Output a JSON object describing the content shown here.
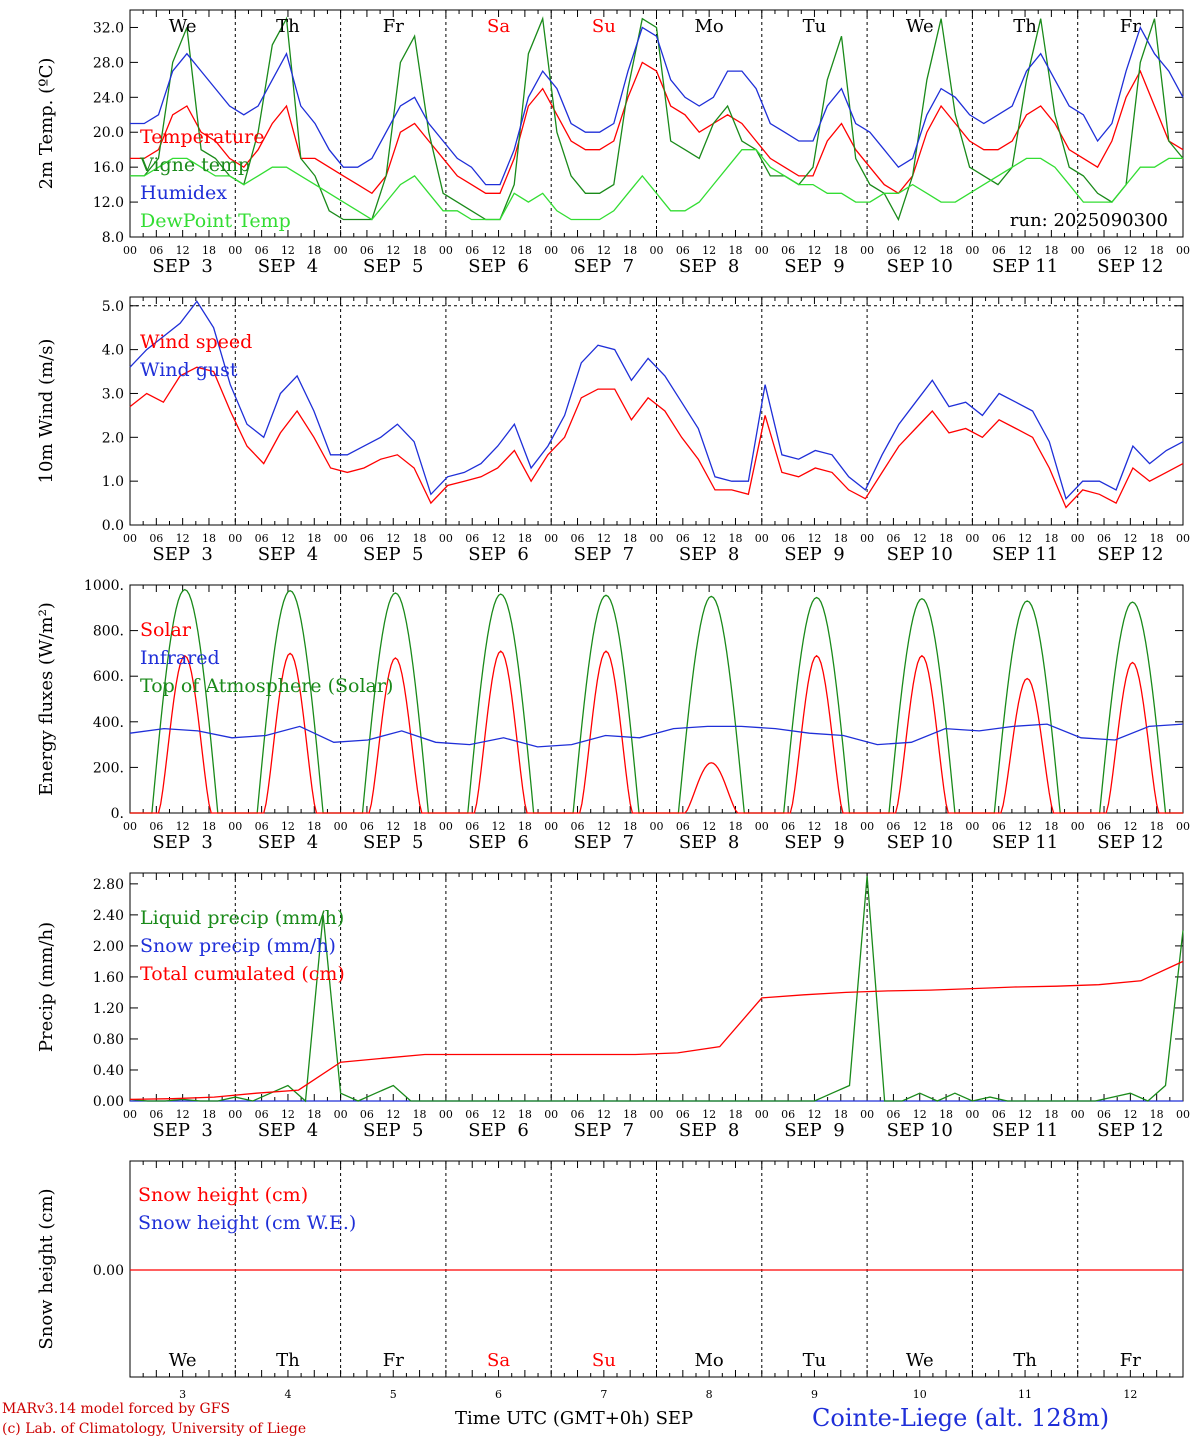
{
  "colors": {
    "temperature": "#ff0000",
    "vigne": "#1a8a1a",
    "humidex": "#1f2fd8",
    "dewpoint": "#33dd33",
    "red": "#ff0000",
    "blue": "#1f2fd8",
    "green": "#1a8a1a",
    "weekend": "#ff0000",
    "weekday": "#000000"
  },
  "days": [
    "We",
    "Th",
    "Fr",
    "Sa",
    "Su",
    "Mo",
    "Tu",
    "We",
    "Th",
    "Fr"
  ],
  "day_is_weekend": [
    false,
    false,
    false,
    true,
    true,
    false,
    false,
    false,
    false,
    false
  ],
  "date_labels": [
    "SEP  3",
    "SEP  4",
    "SEP  5",
    "SEP  6",
    "SEP  7",
    "SEP  8",
    "SEP  9",
    "SEP 10",
    "SEP 11",
    "SEP 12"
  ],
  "hour_ticks": [
    "00",
    "06",
    "12",
    "18"
  ],
  "last_hour_tick": "00",
  "day_numbers": [
    "3",
    "4",
    "5",
    "6",
    "7",
    "8",
    "9",
    "10",
    "11",
    "12"
  ],
  "run_label": "run: 2025090300",
  "footer": {
    "model": "MARv3.14 model forced by GFS",
    "lab": "(c) Lab. of Climatology, University of Liege",
    "xlabel": "Time UTC (GMT+0h) SEP",
    "station": "Cointe-Liege (alt. 128m)"
  },
  "chart_data": [
    {
      "type": "line",
      "ylabel": "2m Temp. (ºC)",
      "ylim": [
        8,
        34
      ],
      "yticks": [
        "8.0",
        "12.0",
        "16.0",
        "20.0",
        "24.0",
        "28.0",
        "32.0"
      ],
      "grid": false,
      "legend_position": "top-left",
      "x": "hours since SEP 3 00 UTC, 3-hourly, 0-240",
      "series": [
        {
          "name": "Temperature",
          "color_key": "temperature",
          "values": [
            17,
            17,
            18,
            22,
            23,
            20,
            19,
            17,
            16,
            18,
            21,
            23,
            17,
            17,
            16,
            15,
            14,
            13,
            15,
            20,
            21,
            19,
            17,
            15,
            14,
            13,
            13,
            17,
            23,
            25,
            22,
            19,
            18,
            18,
            19,
            24,
            28,
            27,
            23,
            22,
            20,
            21,
            22,
            21,
            19,
            17,
            16,
            15,
            15,
            19,
            21,
            18,
            16,
            14,
            13,
            15,
            20,
            23,
            21,
            19,
            18,
            18,
            19,
            22,
            23,
            21,
            18,
            17,
            16,
            19,
            24,
            27,
            23,
            19,
            18
          ]
        },
        {
          "name": "Vigne temp",
          "color_key": "vigne",
          "values": [
            15,
            15,
            17,
            28,
            32,
            18,
            17,
            15,
            14,
            20,
            30,
            33,
            17,
            15,
            11,
            10,
            10,
            10,
            15,
            28,
            31,
            20,
            13,
            12,
            11,
            10,
            10,
            14,
            29,
            33,
            20,
            15,
            13,
            13,
            14,
            25,
            33,
            32,
            19,
            18,
            17,
            21,
            23,
            19,
            18,
            15,
            15,
            14,
            16,
            26,
            31,
            17,
            14,
            13,
            10,
            15,
            26,
            33,
            22,
            16,
            15,
            14,
            16,
            26,
            33,
            22,
            16,
            15,
            13,
            12,
            14,
            28,
            33,
            19,
            17
          ]
        },
        {
          "name": "Humidex",
          "color_key": "humidex",
          "values": [
            21,
            21,
            22,
            27,
            29,
            27,
            25,
            23,
            22,
            23,
            26,
            29,
            23,
            21,
            18,
            16,
            16,
            17,
            20,
            23,
            24,
            21,
            19,
            17,
            16,
            14,
            14,
            18,
            24,
            27,
            25,
            21,
            20,
            20,
            21,
            27,
            32,
            31,
            26,
            24,
            23,
            24,
            27,
            27,
            25,
            21,
            20,
            19,
            19,
            23,
            25,
            21,
            20,
            18,
            16,
            17,
            22,
            25,
            24,
            22,
            21,
            22,
            23,
            27,
            29,
            26,
            23,
            22,
            19,
            21,
            27,
            32,
            29,
            27,
            24
          ]
        },
        {
          "name": "DewPoint Temp",
          "color_key": "dewpoint",
          "values": [
            15,
            15,
            16,
            17,
            17,
            16,
            15,
            15,
            14,
            15,
            16,
            16,
            15,
            14,
            13,
            12,
            11,
            10,
            12,
            14,
            15,
            13,
            11,
            11,
            10,
            10,
            10,
            13,
            12,
            13,
            11,
            10,
            10,
            10,
            11,
            13,
            15,
            13,
            11,
            11,
            12,
            14,
            16,
            18,
            18,
            16,
            15,
            14,
            14,
            13,
            13,
            12,
            12,
            13,
            13,
            14,
            13,
            12,
            12,
            13,
            14,
            15,
            16,
            17,
            17,
            16,
            14,
            12,
            12,
            12,
            14,
            16,
            16,
            17,
            17
          ]
        }
      ]
    },
    {
      "type": "line",
      "ylabel": "10m Wind (m/s)",
      "ylim": [
        0,
        5.2
      ],
      "yticks": [
        "0.0",
        "1.0",
        "2.0",
        "3.0",
        "4.0",
        "5.0"
      ],
      "reference_line": 5.0,
      "legend_position": "top-left",
      "series": [
        {
          "name": "Wind speed",
          "color_key": "red",
          "values": [
            2.7,
            3.0,
            2.8,
            3.4,
            3.6,
            3.5,
            2.6,
            1.8,
            1.4,
            2.1,
            2.6,
            2.0,
            1.3,
            1.2,
            1.3,
            1.5,
            1.6,
            1.3,
            0.5,
            0.9,
            1.0,
            1.1,
            1.3,
            1.7,
            1.0,
            1.6,
            2.0,
            2.9,
            3.1,
            3.1,
            2.4,
            2.9,
            2.6,
            2.0,
            1.5,
            0.8,
            0.8,
            0.7,
            2.5,
            1.2,
            1.1,
            1.3,
            1.2,
            0.8,
            0.6,
            1.2,
            1.8,
            2.2,
            2.6,
            2.1,
            2.2,
            2.0,
            2.4,
            2.2,
            2.0,
            1.3,
            0.4,
            0.8,
            0.7,
            0.5,
            1.3,
            1.0,
            1.2,
            1.4
          ]
        },
        {
          "name": "Wind gust",
          "color_key": "blue",
          "values": [
            3.6,
            4.0,
            4.3,
            4.6,
            5.1,
            4.5,
            3.2,
            2.3,
            2.0,
            3.0,
            3.4,
            2.6,
            1.6,
            1.6,
            1.8,
            2.0,
            2.3,
            1.9,
            0.7,
            1.1,
            1.2,
            1.4,
            1.8,
            2.3,
            1.3,
            1.8,
            2.5,
            3.7,
            4.1,
            4.0,
            3.3,
            3.8,
            3.4,
            2.8,
            2.2,
            1.1,
            1.0,
            1.0,
            3.2,
            1.6,
            1.5,
            1.7,
            1.6,
            1.1,
            0.8,
            1.6,
            2.3,
            2.8,
            3.3,
            2.7,
            2.8,
            2.5,
            3.0,
            2.8,
            2.6,
            1.9,
            0.6,
            1.0,
            1.0,
            0.8,
            1.8,
            1.4,
            1.7,
            1.9
          ]
        }
      ]
    },
    {
      "type": "line",
      "ylabel": "Energy fluxes (W/m²)",
      "ylim": [
        0,
        1000
      ],
      "yticks": [
        "0.",
        "200.",
        "400.",
        "600.",
        "800.",
        "1000."
      ],
      "legend_position": "top-left",
      "series": [
        {
          "name": "Solar",
          "color_key": "red",
          "daily_peak": [
            690,
            700,
            680,
            710,
            710,
            220,
            690,
            690,
            590,
            660
          ]
        },
        {
          "name": "Infrared",
          "color_key": "blue",
          "values": [
            350,
            370,
            360,
            330,
            340,
            380,
            310,
            320,
            360,
            310,
            300,
            330,
            290,
            300,
            340,
            330,
            370,
            380,
            380,
            370,
            350,
            340,
            300,
            310,
            370,
            360,
            380,
            390,
            330,
            320,
            380,
            390
          ]
        },
        {
          "name": "Top of Atmosphere (Solar)",
          "color_key": "green",
          "daily_peak": [
            980,
            975,
            965,
            960,
            955,
            950,
            945,
            940,
            930,
            925
          ]
        }
      ]
    },
    {
      "type": "line",
      "ylabel": "Precip (mm/h)",
      "ylim": [
        0,
        2.94
      ],
      "yticks": [
        "0.00",
        "0.40",
        "0.80",
        "1.20",
        "1.60",
        "2.00",
        "2.40",
        "2.80"
      ],
      "legend_position": "top-left",
      "series": [
        {
          "name": "Liquid precip (mm/h)",
          "color_key": "green",
          "values": [
            0.02,
            0,
            0,
            0.02,
            0,
            0,
            0.05,
            0,
            0.1,
            0.2,
            0,
            2.4,
            0.1,
            0,
            0.1,
            0.2,
            0,
            0,
            0,
            0,
            0,
            0,
            0,
            0,
            0,
            0,
            0,
            0,
            0,
            0,
            0,
            0,
            0,
            0,
            0,
            0,
            0,
            0,
            0,
            0,
            0.1,
            0.2,
            2.9,
            0,
            0,
            0.1,
            0,
            0.1,
            0,
            0.05,
            0,
            0,
            0,
            0,
            0,
            0,
            0.05,
            0.1,
            0,
            0.2,
            2.2
          ]
        },
        {
          "name": "Snow precip (mm/h)",
          "color_key": "blue",
          "values": [
            0,
            0
          ]
        },
        {
          "name": "Total cumulated (cm)",
          "color_key": "red",
          "values": [
            0.02,
            0.03,
            0.05,
            0.1,
            0.14,
            0.5,
            0.55,
            0.6,
            0.6,
            0.6,
            0.6,
            0.6,
            0.6,
            0.62,
            0.7,
            1.33,
            1.37,
            1.4,
            1.42,
            1.43,
            1.45,
            1.47,
            1.48,
            1.5,
            1.55,
            1.8
          ]
        }
      ]
    },
    {
      "type": "line",
      "ylabel": "Snow height (cm)",
      "yticks": [
        "0.00"
      ],
      "legend_position": "top-left",
      "series": [
        {
          "name": "Snow height (cm)",
          "color_key": "red",
          "values": [
            0,
            0
          ]
        },
        {
          "name": "Snow height (cm W.E.)",
          "color_key": "blue",
          "values": [
            0,
            0
          ]
        }
      ]
    }
  ]
}
